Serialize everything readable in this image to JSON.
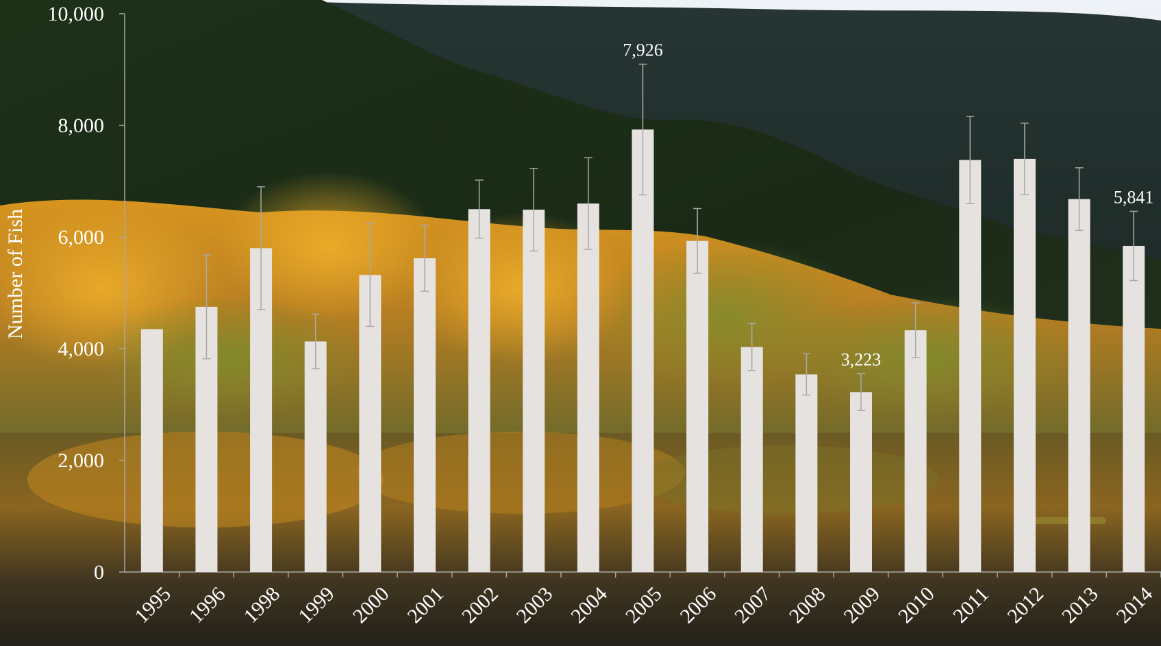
{
  "chart_data": {
    "type": "bar",
    "title": "",
    "xlabel": "",
    "ylabel": "Number of Fish",
    "ylim": [
      0,
      10000
    ],
    "yticks": [
      "0",
      "2,000",
      "4,000",
      "6,000",
      "8,000",
      "10,000"
    ],
    "categories": [
      "1995",
      "1996",
      "1998",
      "1999",
      "2000",
      "2001",
      "2002",
      "2003",
      "2004",
      "2005",
      "2006",
      "2007",
      "2008",
      "2009",
      "2010",
      "2011",
      "2012",
      "2013",
      "2014"
    ],
    "values": [
      4350,
      4750,
      5800,
      4130,
      5320,
      5620,
      6500,
      6490,
      6600,
      7926,
      5930,
      4030,
      3540,
      3223,
      4330,
      7380,
      7400,
      6680,
      5841
    ],
    "error": [
      0,
      930,
      1100,
      490,
      920,
      590,
      520,
      740,
      820,
      1170,
      580,
      420,
      370,
      330,
      490,
      780,
      640,
      560,
      620
    ],
    "data_labels": {
      "2005": "7,926",
      "2009": "3,223",
      "2014": "5,841"
    },
    "grid": false,
    "legend": "none",
    "bar_color": "#e6e2df",
    "errorbar_color": "#a9a9a9",
    "text_color": "#ffffff"
  },
  "background": {
    "description_icon": "forest-lake-photo",
    "sky": "#dfe7ee",
    "far_hill": "#1c2a2d",
    "near_hill": "#17291a",
    "foliage_gold": "#c98a1e",
    "foliage_green": "#6c7e2e",
    "water": "#3a2f1c"
  }
}
